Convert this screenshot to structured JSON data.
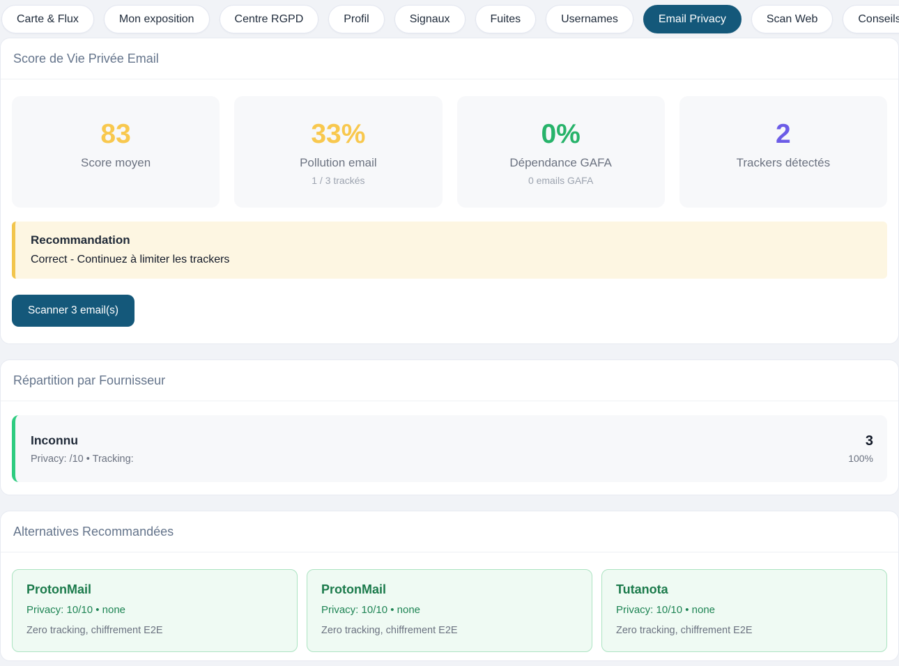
{
  "colors": {
    "accent_dark": "#14587a",
    "stat_yellow": "#f8c84e",
    "stat_green": "#27b36a",
    "stat_purple": "#6c5ce7",
    "recommendation_bg": "#fdf6e2",
    "recommendation_border": "#f2c54d",
    "provider_border_green": "#2ecc80",
    "alternative_bg": "#effaf3",
    "alternative_border": "#abe3c1",
    "alternative_text_green": "#1b7a4b"
  },
  "tabs": [
    {
      "label": "Carte & Flux",
      "active": false
    },
    {
      "label": "Mon exposition",
      "active": false
    },
    {
      "label": "Centre RGPD",
      "active": false
    },
    {
      "label": "Profil",
      "active": false
    },
    {
      "label": "Signaux",
      "active": false
    },
    {
      "label": "Fuites",
      "active": false
    },
    {
      "label": "Usernames",
      "active": false
    },
    {
      "label": "Email Privacy",
      "active": true
    },
    {
      "label": "Scan Web",
      "active": false
    },
    {
      "label": "Conseils",
      "active": false
    }
  ],
  "score_section": {
    "title": "Score de Vie Privée Email",
    "stats": [
      {
        "value": "83",
        "label": "Score moyen",
        "sub": ""
      },
      {
        "value": "33%",
        "label": "Pollution email",
        "sub": "1 / 3 trackés"
      },
      {
        "value": "0%",
        "label": "Dépendance GAFA",
        "sub": "0 emails GAFA"
      },
      {
        "value": "2",
        "label": "Trackers détectés",
        "sub": ""
      }
    ],
    "recommendation": {
      "title": "Recommandation",
      "text": "Correct - Continuez à limiter les trackers"
    },
    "scan_button_label": "Scanner 3 email(s)"
  },
  "providers_section": {
    "title": "Répartition par Fournisseur",
    "providers": [
      {
        "name": "Inconnu",
        "details": "Privacy: /10 • Tracking:",
        "count": "3",
        "percent": "100%"
      }
    ]
  },
  "alternatives_section": {
    "title": "Alternatives Recommandées",
    "alternatives": [
      {
        "name": "ProtonMail",
        "privacy": "Privacy: 10/10 • none",
        "desc": "Zero tracking, chiffrement E2E"
      },
      {
        "name": "ProtonMail",
        "privacy": "Privacy: 10/10 • none",
        "desc": "Zero tracking, chiffrement E2E"
      },
      {
        "name": "Tutanota",
        "privacy": "Privacy: 10/10 • none",
        "desc": "Zero tracking, chiffrement E2E"
      }
    ]
  }
}
